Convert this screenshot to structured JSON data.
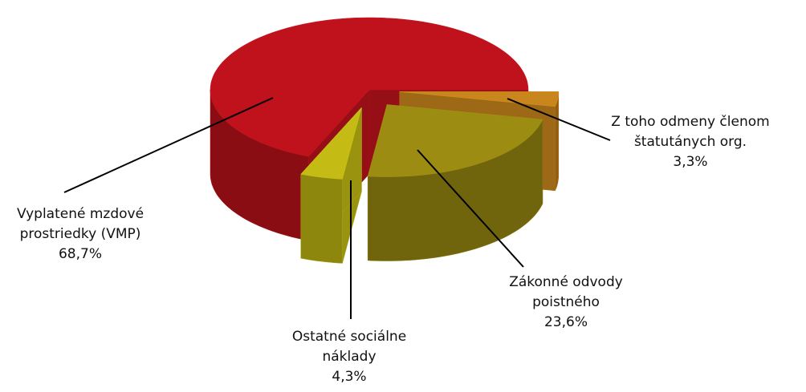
{
  "chart_data": {
    "type": "pie3d",
    "categories": [
      "Vyplatené mzdové prostriedky (VMP)",
      "Z toho odmeny členom štatutánych org.",
      "Zákonné odvody poistného",
      "Ostatné sociálne náklady"
    ],
    "values": [
      68.7,
      3.3,
      23.6,
      4.3
    ],
    "value_labels": [
      "68,7%",
      "3,3%",
      "23,6%",
      "4,3%"
    ],
    "colors": [
      "#c0121c",
      "#c9861c",
      "#9c8c12",
      "#c4bc14"
    ]
  }
}
